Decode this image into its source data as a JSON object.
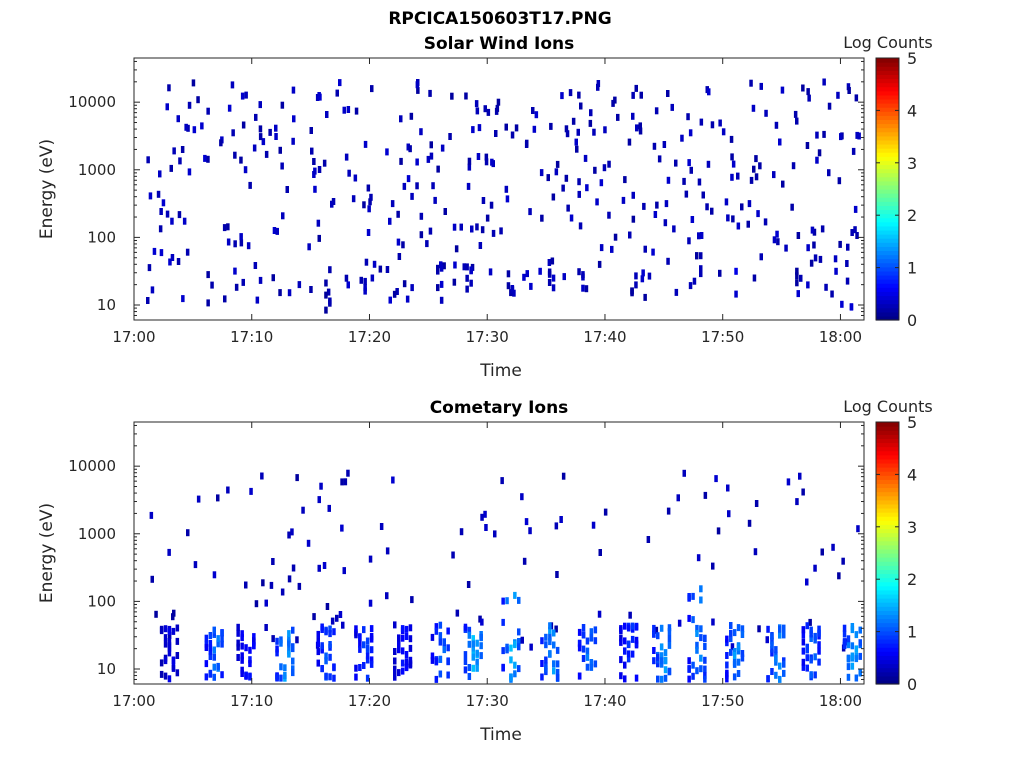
{
  "title": "RPCICA150603T17.PNG",
  "colorbar": {
    "label": "Log Counts",
    "ticks": [
      "0",
      "1",
      "2",
      "3",
      "4",
      "5"
    ],
    "range": [
      0,
      5
    ],
    "colormap": "jet"
  },
  "chart_data": [
    {
      "type": "heatmap",
      "title": "Solar Wind Ions",
      "xlabel": "Time",
      "ylabel": "Energy (eV)",
      "xlim": [
        "17:00",
        "18:02"
      ],
      "ylim": [
        6,
        45000
      ],
      "yscale": "log",
      "xticks": [
        "17:00",
        "17:10",
        "17:20",
        "17:30",
        "17:40",
        "17:50",
        "18:00"
      ],
      "yticks": [
        "10",
        "100",
        "1000",
        "10000"
      ],
      "clim": [
        0,
        5
      ],
      "grid": false,
      "seed": 7,
      "description_values": "sparse single-count events (log counts ~0.1-0.5) scattered over 10 eV - 30 keV; denser low-energy (10-40 eV) streaks near 17:06, 17:16, 17:19, 17:26, 17:28, 17:32, 17:35, 17:38, 17:42, 17:48, 17:51, 17:57, 18:01",
      "clusters": [
        {
          "t": 6.5,
          "e_lo": 8,
          "e_hi": 40,
          "v": 0.3
        },
        {
          "t": 16.5,
          "e_lo": 8,
          "e_hi": 35,
          "v": 0.3
        },
        {
          "t": 19.5,
          "e_lo": 12,
          "e_hi": 30,
          "v": 0.4
        },
        {
          "t": 26.0,
          "e_lo": 10,
          "e_hi": 40,
          "v": 0.4
        },
        {
          "t": 28.5,
          "e_lo": 14,
          "e_hi": 40,
          "v": 0.4
        },
        {
          "t": 32.0,
          "e_lo": 14,
          "e_hi": 35,
          "v": 0.4
        },
        {
          "t": 35.5,
          "e_lo": 14,
          "e_hi": 40,
          "v": 0.4
        },
        {
          "t": 38.0,
          "e_lo": 14,
          "e_hi": 40,
          "v": 0.4
        },
        {
          "t": 42.5,
          "e_lo": 14,
          "e_hi": 40,
          "v": 0.3
        },
        {
          "t": 48.0,
          "e_lo": 16,
          "e_hi": 80,
          "v": 0.3
        },
        {
          "t": 51.0,
          "e_lo": 10,
          "e_hi": 40,
          "v": 0.5
        },
        {
          "t": 56.5,
          "e_lo": 18,
          "e_hi": 40,
          "v": 0.3
        },
        {
          "t": 60.8,
          "e_lo": 8,
          "e_hi": 40,
          "v": 0.5
        }
      ]
    },
    {
      "type": "heatmap",
      "title": "Cometary Ions",
      "xlabel": "Time",
      "ylabel": "Energy (eV)",
      "xlim": [
        "17:00",
        "18:02"
      ],
      "ylim": [
        6,
        45000
      ],
      "yscale": "log",
      "xticks": [
        "17:00",
        "17:10",
        "17:20",
        "17:30",
        "17:40",
        "17:50",
        "18:00"
      ],
      "yticks": [
        "10",
        "100",
        "1000",
        "10000"
      ],
      "clim": [
        0,
        5
      ],
      "grid": false,
      "seed": 13,
      "description_values": "recurring low-energy (7-45 eV) bursts with log counts up to ~1.8 roughly every 2.5-3 min; sparse high-energy single counts up to ~6 keV",
      "clusters": [
        {
          "t": 3.0,
          "e_lo": 7,
          "e_hi": 45,
          "v": 0.6
        },
        {
          "t": 6.8,
          "e_lo": 7,
          "e_hi": 45,
          "v": 1.4
        },
        {
          "t": 9.5,
          "e_lo": 7,
          "e_hi": 45,
          "v": 0.9
        },
        {
          "t": 12.8,
          "e_lo": 7,
          "e_hi": 45,
          "v": 1.6
        },
        {
          "t": 16.3,
          "e_lo": 7,
          "e_hi": 45,
          "v": 1.2
        },
        {
          "t": 19.5,
          "e_lo": 7,
          "e_hi": 45,
          "v": 1.1
        },
        {
          "t": 22.8,
          "e_lo": 7,
          "e_hi": 45,
          "v": 0.8
        },
        {
          "t": 26.0,
          "e_lo": 7,
          "e_hi": 45,
          "v": 1.3
        },
        {
          "t": 28.8,
          "e_lo": 7,
          "e_hi": 45,
          "v": 1.8
        },
        {
          "t": 32.0,
          "e_lo": 7,
          "e_hi": 160,
          "v": 1.8
        },
        {
          "t": 35.3,
          "e_lo": 7,
          "e_hi": 45,
          "v": 1.6
        },
        {
          "t": 38.5,
          "e_lo": 7,
          "e_hi": 45,
          "v": 1.4
        },
        {
          "t": 42.0,
          "e_lo": 7,
          "e_hi": 45,
          "v": 1.0
        },
        {
          "t": 44.8,
          "e_lo": 7,
          "e_hi": 45,
          "v": 1.6
        },
        {
          "t": 47.8,
          "e_lo": 7,
          "e_hi": 160,
          "v": 1.5
        },
        {
          "t": 51.0,
          "e_lo": 7,
          "e_hi": 45,
          "v": 1.6
        },
        {
          "t": 54.5,
          "e_lo": 7,
          "e_hi": 45,
          "v": 1.5
        },
        {
          "t": 57.5,
          "e_lo": 7,
          "e_hi": 45,
          "v": 1.3
        },
        {
          "t": 61.0,
          "e_lo": 7,
          "e_hi": 45,
          "v": 1.7
        }
      ]
    }
  ]
}
